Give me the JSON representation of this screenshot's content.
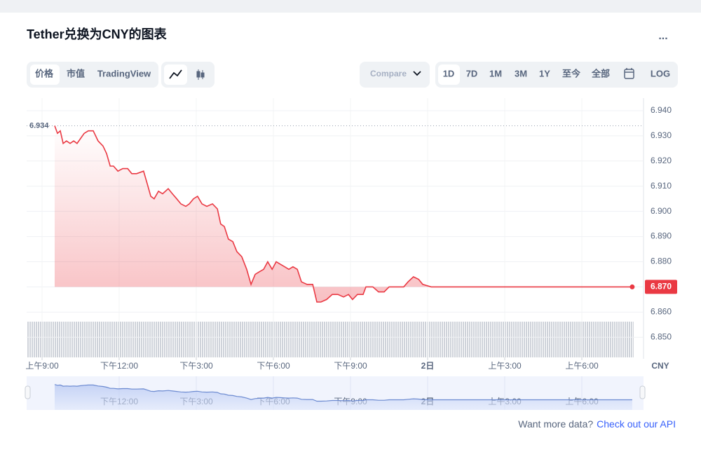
{
  "header": {
    "title": "Tether兑换为CNY的图表",
    "menu": "..."
  },
  "toolbar": {
    "views": [
      "价格",
      "市值",
      "TradingView"
    ],
    "compare": "Compare",
    "ranges": [
      "1D",
      "7D",
      "1M",
      "3M",
      "1Y",
      "至今",
      "全部"
    ],
    "log": "LOG"
  },
  "chart_data": {
    "type": "line",
    "color": "#ea3943",
    "grid": true,
    "axis_label": "CNY",
    "x": [
      9.49,
      9.6,
      9.71,
      9.82,
      9.95,
      10.09,
      10.23,
      10.36,
      10.5,
      10.64,
      10.8,
      10.99,
      11.18,
      11.37,
      11.51,
      11.65,
      11.78,
      11.95,
      12.14,
      12.33,
      12.49,
      12.68,
      12.95,
      13.09,
      13.23,
      13.36,
      13.53,
      13.69,
      13.91,
      14.07,
      14.24,
      14.4,
      14.59,
      14.73,
      14.89,
      15.05,
      15.22,
      15.41,
      15.63,
      15.82,
      15.95,
      16.09,
      16.25,
      16.42,
      16.58,
      16.77,
      16.96,
      17.13,
      17.29,
      17.45,
      17.62,
      17.78,
      17.95,
      18.11,
      18.27,
      18.44,
      18.6,
      18.76,
      18.93,
      19.09,
      19.31,
      19.53,
      19.69,
      19.85,
      20.07,
      20.29,
      20.51,
      20.73,
      20.92,
      21.08,
      21.27,
      21.49,
      21.6,
      21.87,
      22.09,
      22.31,
      22.5,
      22.69,
      22.91,
      23.07,
      23.24,
      23.45,
      23.65,
      23.81,
      24.14,
      24.83,
      25.5,
      25.91,
      26.45,
      27.55,
      28.36,
      29.18,
      30.0,
      30.82,
      31.5,
      31.96
    ],
    "values": [
      6.934,
      6.931,
      6.932,
      6.927,
      6.928,
      6.927,
      6.928,
      6.927,
      6.929,
      6.931,
      6.932,
      6.932,
      6.928,
      6.926,
      6.923,
      6.918,
      6.918,
      6.916,
      6.917,
      6.917,
      6.915,
      6.915,
      6.916,
      6.911,
      6.906,
      6.905,
      6.908,
      6.907,
      6.909,
      6.907,
      6.905,
      6.903,
      6.902,
      6.903,
      6.905,
      6.906,
      6.903,
      6.902,
      6.903,
      6.901,
      6.895,
      6.894,
      6.889,
      6.888,
      6.884,
      6.882,
      6.877,
      6.871,
      6.875,
      6.876,
      6.877,
      6.88,
      6.877,
      6.88,
      6.879,
      6.878,
      6.877,
      6.878,
      6.877,
      6.872,
      6.871,
      6.871,
      6.864,
      6.864,
      6.865,
      6.867,
      6.867,
      6.866,
      6.867,
      6.865,
      6.867,
      6.867,
      6.87,
      6.87,
      6.868,
      6.868,
      6.87,
      6.87,
      6.87,
      6.87,
      6.872,
      6.874,
      6.873,
      6.871,
      6.87,
      6.87,
      6.87,
      6.87,
      6.87,
      6.87,
      6.87,
      6.87,
      6.87,
      6.87,
      6.87,
      6.87
    ],
    "xlim": [
      8.4,
      32.4
    ],
    "xticks": [
      {
        "value": 9,
        "label": "上午9:00"
      },
      {
        "value": 12,
        "label": "下午12:00"
      },
      {
        "value": 15,
        "label": "下午3:00"
      },
      {
        "value": 18,
        "label": "下午6:00"
      },
      {
        "value": 21,
        "label": "下午9:00"
      },
      {
        "value": 24,
        "label": "2日"
      },
      {
        "value": 27,
        "label": "上午3:00"
      },
      {
        "value": 30,
        "label": "上午6:00"
      }
    ],
    "ylim": [
      6.842,
      6.945
    ],
    "yticks": [
      {
        "value": 6.85,
        "label": "6.850"
      },
      {
        "value": 6.86,
        "label": "6.860"
      },
      {
        "value": 6.87,
        "label": "6.870"
      },
      {
        "value": 6.88,
        "label": "6.880"
      },
      {
        "value": 6.89,
        "label": "6.890"
      },
      {
        "value": 6.9,
        "label": "6.900"
      },
      {
        "value": 6.91,
        "label": "6.910"
      },
      {
        "value": 6.92,
        "label": "6.920"
      },
      {
        "value": 6.93,
        "label": "6.930"
      },
      {
        "value": 6.94,
        "label": "6.940"
      }
    ],
    "max_marker": 6.934,
    "last_value": {
      "value": 6.87,
      "label": "6.870"
    }
  },
  "footer": {
    "text": "Want more data?",
    "link": "Check out our API"
  }
}
